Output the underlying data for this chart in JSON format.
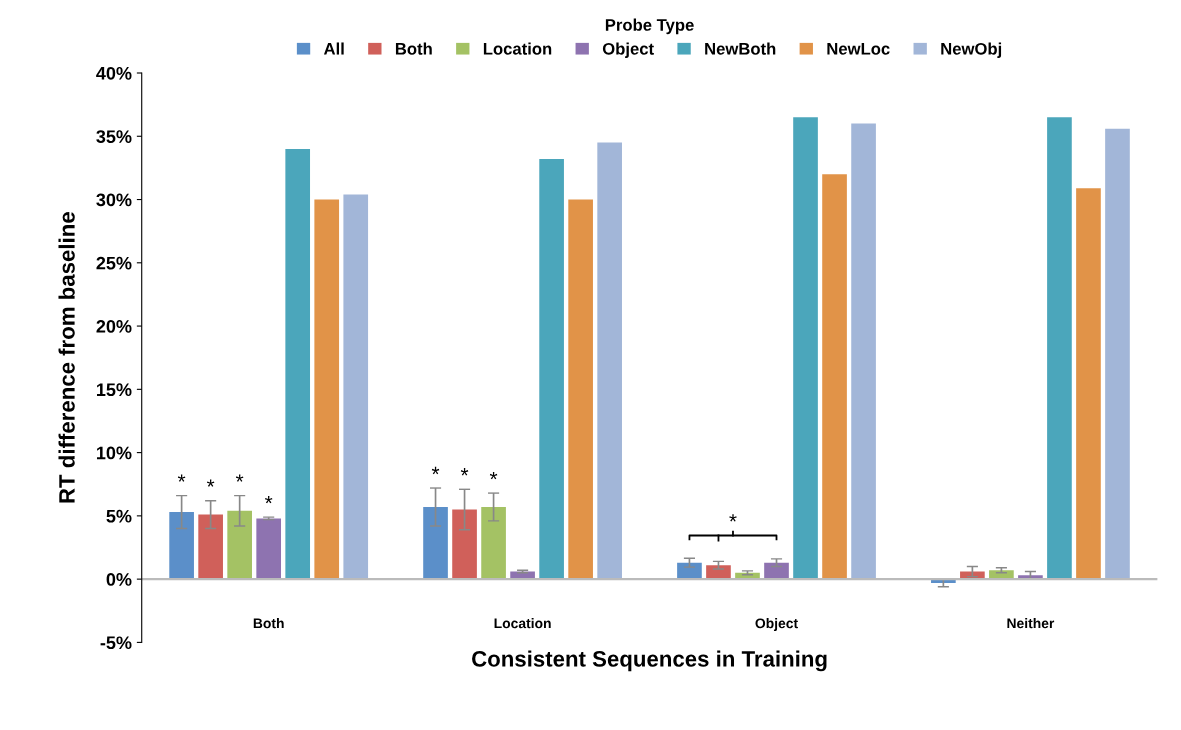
{
  "chart_data": {
    "type": "bar",
    "xlabel": "Consistent Sequences in Training",
    "ylabel": "RT difference from baseline",
    "legend_title": "Probe Type",
    "legend": "top",
    "grid": false,
    "categories": [
      "Both",
      "Location",
      "Object",
      "Neither"
    ],
    "ylim": [
      -5,
      40
    ],
    "yticks": [
      {
        "value": -5,
        "label": "-5%"
      },
      {
        "value": 0,
        "label": "0%"
      },
      {
        "value": 5,
        "label": "5%"
      },
      {
        "value": 10,
        "label": "10%"
      },
      {
        "value": 15,
        "label": "15%"
      },
      {
        "value": 20,
        "label": "20%"
      },
      {
        "value": 25,
        "label": "25%"
      },
      {
        "value": 30,
        "label": "30%"
      },
      {
        "value": 35,
        "label": "35%"
      },
      {
        "value": 40,
        "label": "40%"
      }
    ],
    "series": [
      {
        "name": "All",
        "color": "#5b8fc9",
        "values": [
          5.3,
          5.7,
          1.3,
          -0.3
        ],
        "errors": [
          1.3,
          1.5,
          0.35,
          0.3
        ],
        "value_labels": [
          "*",
          "*",
          null,
          null
        ]
      },
      {
        "name": "Both",
        "color": "#d0605a",
        "values": [
          5.1,
          5.5,
          1.1,
          0.6
        ],
        "errors": [
          1.1,
          1.6,
          0.3,
          0.4
        ],
        "value_labels": [
          "*",
          "*",
          null,
          null
        ]
      },
      {
        "name": "Location",
        "color": "#a4c264",
        "values": [
          5.4,
          5.7,
          0.5,
          0.7
        ],
        "errors": [
          1.2,
          1.1,
          0.15,
          0.2
        ],
        "value_labels": [
          "*",
          "*",
          null,
          null
        ]
      },
      {
        "name": "Object",
        "color": "#8e73b0",
        "values": [
          4.8,
          0.6,
          1.3,
          0.3
        ],
        "errors": [
          0.1,
          0.1,
          0.3,
          0.3
        ],
        "value_labels": [
          "*",
          null,
          null,
          null
        ]
      },
      {
        "name": "NewBoth",
        "color": "#4ba6bb",
        "values": [
          34.0,
          33.2,
          36.5,
          36.5
        ]
      },
      {
        "name": "NewLoc",
        "color": "#e19348",
        "values": [
          30.0,
          30.0,
          32.0,
          30.9
        ]
      },
      {
        "name": "NewObj",
        "color": "#a2b6d8",
        "values": [
          30.4,
          34.5,
          36.0,
          35.6
        ]
      }
    ],
    "ref_lines": [
      {
        "axis": "y",
        "value": 0,
        "color": "#bbbbbb"
      }
    ],
    "annotations": [
      "*"
    ]
  }
}
